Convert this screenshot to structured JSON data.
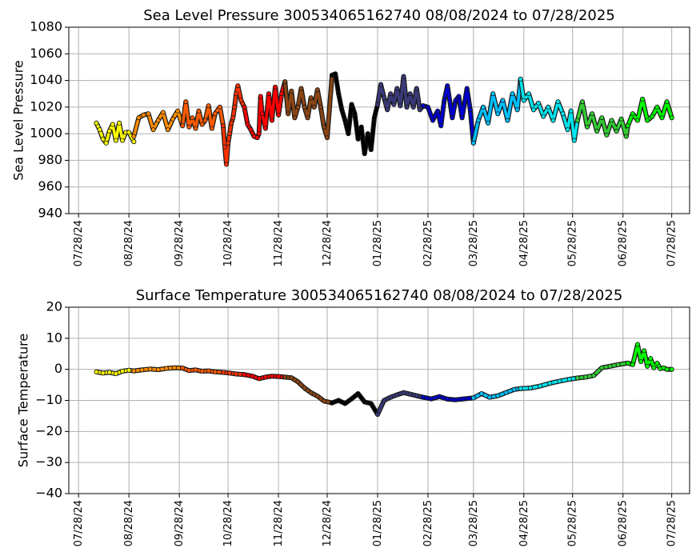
{
  "chart_data": [
    {
      "type": "scatter",
      "title": "Sea Level Pressure 300534065162740  08/08/2024 to 07/28/2025",
      "xlabel": "",
      "ylabel": "Sea Level Pressure",
      "ylim": [
        940,
        1080
      ],
      "yticks": [
        940,
        960,
        980,
        1000,
        1020,
        1040,
        1060,
        1080
      ],
      "xlim": [
        "2024-07-22",
        "2025-08-08"
      ],
      "xtick_labels": [
        "07/28/24",
        "08/28/24",
        "09/28/24",
        "10/28/24",
        "11/28/24",
        "12/28/24",
        "01/28/25",
        "02/28/25",
        "03/28/25",
        "04/28/25",
        "05/28/25",
        "06/28/25",
        "07/28/25"
      ],
      "xtick_dates": [
        "2024-07-28",
        "2024-08-28",
        "2024-09-28",
        "2024-10-28",
        "2024-11-28",
        "2024-12-28",
        "2025-01-28",
        "2025-02-28",
        "2025-03-28",
        "2025-04-28",
        "2025-05-28",
        "2025-06-28",
        "2025-07-28"
      ],
      "grid": true,
      "series": [
        {
          "color": "#ffff00",
          "x": [
            "2024-08-08",
            "2024-08-10",
            "2024-08-12",
            "2024-08-14",
            "2024-08-16",
            "2024-08-18",
            "2024-08-20",
            "2024-08-22",
            "2024-08-24",
            "2024-08-26",
            "2024-08-28",
            "2024-08-31"
          ],
          "y": [
            1008,
            1003,
            996,
            993,
            1002,
            1007,
            995,
            1008,
            995,
            1001,
            1001,
            994
          ]
        },
        {
          "color": "#ff8c00",
          "x": [
            "2024-08-31",
            "2024-09-03",
            "2024-09-06",
            "2024-09-09",
            "2024-09-12",
            "2024-09-15",
            "2024-09-18",
            "2024-09-21",
            "2024-09-24",
            "2024-09-27",
            "2024-09-30"
          ],
          "y": [
            998,
            1012,
            1014,
            1015,
            1003,
            1010,
            1016,
            1003,
            1011,
            1017,
            1006
          ]
        },
        {
          "color": "#ff5a00",
          "x": [
            "2024-09-30",
            "2024-10-02",
            "2024-10-04",
            "2024-10-06",
            "2024-10-08",
            "2024-10-10",
            "2024-10-12",
            "2024-10-14",
            "2024-10-16",
            "2024-10-18",
            "2024-10-20",
            "2024-10-23",
            "2024-10-25"
          ],
          "y": [
            1006,
            1024,
            1005,
            1012,
            1004,
            1017,
            1007,
            1010,
            1021,
            1004,
            1015,
            1020,
            1006
          ]
        },
        {
          "color": "#ff3300",
          "x": [
            "2024-10-25",
            "2024-10-26",
            "2024-10-27",
            "2024-10-28",
            "2024-10-29",
            "2024-10-30",
            "2024-10-31",
            "2024-11-01",
            "2024-11-02",
            "2024-11-03",
            "2024-11-05",
            "2024-11-07"
          ],
          "y": [
            1006,
            990,
            977,
            993,
            1000,
            1008,
            1012,
            1020,
            1030,
            1036,
            1025,
            1020
          ]
        },
        {
          "color": "#ff0000",
          "x": [
            "2024-11-07",
            "2024-11-09",
            "2024-11-11",
            "2024-11-13",
            "2024-11-15",
            "2024-11-16",
            "2024-11-17",
            "2024-11-18",
            "2024-11-20",
            "2024-11-22",
            "2024-11-24",
            "2024-11-26",
            "2024-11-28",
            "2024-11-30",
            "2024-12-02"
          ],
          "y": [
            1020,
            1007,
            1003,
            998,
            997,
            1000,
            1028,
            1015,
            1004,
            1030,
            1010,
            1035,
            1014,
            1030,
            1039
          ]
        },
        {
          "color": "#8b4513",
          "x": [
            "2024-12-02",
            "2024-12-04",
            "2024-12-06",
            "2024-12-08",
            "2024-12-10",
            "2024-12-12",
            "2024-12-14",
            "2024-12-16",
            "2024-12-18",
            "2024-12-20",
            "2024-12-22",
            "2024-12-24",
            "2024-12-26",
            "2024-12-28",
            "2024-12-31"
          ],
          "y": [
            1039,
            1015,
            1032,
            1012,
            1020,
            1034,
            1020,
            1012,
            1027,
            1020,
            1033,
            1020,
            1005,
            997,
            1044
          ]
        },
        {
          "color": "#000000",
          "x": [
            "2024-12-31",
            "2025-01-02",
            "2025-01-04",
            "2025-01-06",
            "2025-01-08",
            "2025-01-10",
            "2025-01-12",
            "2025-01-14",
            "2025-01-16",
            "2025-01-18",
            "2025-01-20",
            "2025-01-22",
            "2025-01-24",
            "2025-01-26",
            "2025-01-28"
          ],
          "y": [
            1044,
            1045,
            1030,
            1018,
            1010,
            1000,
            1022,
            1015,
            996,
            1005,
            985,
            1000,
            988,
            1012,
            1022
          ]
        },
        {
          "color": "#3a3a7a",
          "x": [
            "2025-01-28",
            "2025-01-30",
            "2025-02-01",
            "2025-02-03",
            "2025-02-05",
            "2025-02-07",
            "2025-02-09",
            "2025-02-11",
            "2025-02-13",
            "2025-02-15",
            "2025-02-17",
            "2025-02-19",
            "2025-02-21",
            "2025-02-23",
            "2025-02-25"
          ],
          "y": [
            1022,
            1037,
            1027,
            1018,
            1030,
            1022,
            1034,
            1021,
            1043,
            1020,
            1030,
            1020,
            1034,
            1018,
            1021
          ]
        },
        {
          "color": "#0000cd",
          "x": [
            "2025-02-25",
            "2025-02-28",
            "2025-03-03",
            "2025-03-06",
            "2025-03-08",
            "2025-03-10",
            "2025-03-12",
            "2025-03-15",
            "2025-03-17",
            "2025-03-19",
            "2025-03-21",
            "2025-03-24",
            "2025-03-26",
            "2025-03-28"
          ],
          "y": [
            1021,
            1020,
            1010,
            1017,
            1006,
            1025,
            1036,
            1012,
            1025,
            1028,
            1012,
            1034,
            1018,
            993
          ]
        },
        {
          "color": "#00bfff",
          "x": [
            "2025-03-28",
            "2025-03-31",
            "2025-04-03",
            "2025-04-06",
            "2025-04-09",
            "2025-04-12",
            "2025-04-15",
            "2025-04-18",
            "2025-04-21",
            "2025-04-24",
            "2025-04-26"
          ],
          "y": [
            993,
            1010,
            1020,
            1008,
            1030,
            1015,
            1025,
            1010,
            1030,
            1018,
            1041
          ]
        },
        {
          "color": "#00e5ee",
          "x": [
            "2025-04-26",
            "2025-04-28",
            "2025-05-01",
            "2025-05-04",
            "2025-05-07",
            "2025-05-10",
            "2025-05-13",
            "2025-05-16",
            "2025-05-19",
            "2025-05-22",
            "2025-05-25",
            "2025-05-27",
            "2025-05-29",
            "2025-05-31"
          ],
          "y": [
            1041,
            1025,
            1030,
            1018,
            1023,
            1013,
            1020,
            1010,
            1024,
            1015,
            1003,
            1017,
            995,
            1010
          ]
        },
        {
          "color": "#32cd32",
          "x": [
            "2025-05-31",
            "2025-06-03",
            "2025-06-06",
            "2025-06-09",
            "2025-06-12",
            "2025-06-15",
            "2025-06-18",
            "2025-06-21",
            "2025-06-24",
            "2025-06-27",
            "2025-06-30",
            "2025-07-01"
          ],
          "y": [
            1010,
            1024,
            1005,
            1015,
            1002,
            1012,
            999,
            1010,
            1002,
            1011,
            998,
            1006
          ]
        },
        {
          "color": "#00ff00",
          "x": [
            "2025-07-01",
            "2025-07-04",
            "2025-07-07",
            "2025-07-10",
            "2025-07-13",
            "2025-07-16",
            "2025-07-19",
            "2025-07-22",
            "2025-07-25",
            "2025-07-28"
          ],
          "y": [
            1006,
            1015,
            1010,
            1026,
            1010,
            1013,
            1020,
            1012,
            1024,
            1012
          ]
        }
      ]
    },
    {
      "type": "scatter",
      "title": "Surface Temperature 300534065162740  08/08/2024 to 07/28/2025",
      "xlabel": "",
      "ylabel": "Surface Temperature",
      "ylim": [
        -40,
        20
      ],
      "yticks": [
        -40,
        -30,
        -20,
        -10,
        0,
        10,
        20
      ],
      "xlim": [
        "2024-07-22",
        "2025-08-08"
      ],
      "xtick_labels": [
        "07/28/24",
        "08/28/24",
        "09/28/24",
        "10/28/24",
        "11/28/24",
        "12/28/24",
        "01/28/25",
        "02/28/25",
        "03/28/25",
        "04/28/25",
        "05/28/25",
        "06/28/25",
        "07/28/25"
      ],
      "xtick_dates": [
        "2024-07-28",
        "2024-08-28",
        "2024-09-28",
        "2024-10-28",
        "2024-11-28",
        "2024-12-28",
        "2025-01-28",
        "2025-02-28",
        "2025-03-28",
        "2025-04-28",
        "2025-05-28",
        "2025-06-28",
        "2025-07-28"
      ],
      "grid": true,
      "series": [
        {
          "color": "#ffff00",
          "x": [
            "2024-08-08",
            "2024-08-12",
            "2024-08-16",
            "2024-08-20",
            "2024-08-24",
            "2024-08-28",
            "2024-08-31"
          ],
          "y": [
            -0.8,
            -1.2,
            -1.0,
            -1.4,
            -0.6,
            -0.3,
            -0.5
          ]
        },
        {
          "color": "#ff8c00",
          "x": [
            "2024-08-31",
            "2024-09-05",
            "2024-09-10",
            "2024-09-15",
            "2024-09-20",
            "2024-09-25",
            "2024-09-30"
          ],
          "y": [
            -0.5,
            -0.2,
            0.1,
            -0.1,
            0.3,
            0.5,
            0.4
          ]
        },
        {
          "color": "#ff5a00",
          "x": [
            "2024-09-30",
            "2024-10-04",
            "2024-10-08",
            "2024-10-12",
            "2024-10-16",
            "2024-10-20",
            "2024-10-25"
          ],
          "y": [
            0.4,
            -0.4,
            -0.2,
            -0.6,
            -0.5,
            -0.8,
            -1.0
          ]
        },
        {
          "color": "#ff3300",
          "x": [
            "2024-10-25",
            "2024-10-29",
            "2024-11-02",
            "2024-11-07"
          ],
          "y": [
            -1.0,
            -1.2,
            -1.5,
            -1.7
          ]
        },
        {
          "color": "#ff0000",
          "x": [
            "2024-11-07",
            "2024-11-12",
            "2024-11-16",
            "2024-11-20",
            "2024-11-24",
            "2024-11-28",
            "2024-12-02"
          ],
          "y": [
            -1.7,
            -2.2,
            -3.0,
            -2.5,
            -2.2,
            -2.3,
            -2.5
          ]
        },
        {
          "color": "#8b4513",
          "x": [
            "2024-12-02",
            "2024-12-06",
            "2024-12-10",
            "2024-12-14",
            "2024-12-18",
            "2024-12-22",
            "2024-12-26",
            "2024-12-31"
          ],
          "y": [
            -2.5,
            -2.7,
            -4.0,
            -6.0,
            -7.5,
            -8.6,
            -10.2,
            -10.8
          ]
        },
        {
          "color": "#000000",
          "x": [
            "2024-12-31",
            "2025-01-04",
            "2025-01-08",
            "2025-01-12",
            "2025-01-16",
            "2025-01-20",
            "2025-01-24",
            "2025-01-28"
          ],
          "y": [
            -10.8,
            -10.0,
            -11.0,
            -9.5,
            -7.8,
            -10.5,
            -11.0,
            -14.5
          ]
        },
        {
          "color": "#3a3a7a",
          "x": [
            "2025-01-28",
            "2025-02-01",
            "2025-02-05",
            "2025-02-09",
            "2025-02-13",
            "2025-02-17",
            "2025-02-21",
            "2025-02-25"
          ],
          "y": [
            -14.5,
            -10.0,
            -9.0,
            -8.2,
            -7.5,
            -8.0,
            -8.5,
            -9.0
          ]
        },
        {
          "color": "#0000cd",
          "x": [
            "2025-02-25",
            "2025-03-02",
            "2025-03-07",
            "2025-03-12",
            "2025-03-17",
            "2025-03-22",
            "2025-03-28"
          ],
          "y": [
            -9.0,
            -9.5,
            -8.8,
            -9.6,
            -9.8,
            -9.5,
            -9.2
          ]
        },
        {
          "color": "#00bfff",
          "x": [
            "2025-03-28",
            "2025-04-02",
            "2025-04-07",
            "2025-04-12",
            "2025-04-17",
            "2025-04-22",
            "2025-04-26"
          ],
          "y": [
            -9.2,
            -7.8,
            -9.0,
            -8.5,
            -7.5,
            -6.5,
            -6.2
          ]
        },
        {
          "color": "#00e5ee",
          "x": [
            "2025-04-26",
            "2025-05-02",
            "2025-05-08",
            "2025-05-14",
            "2025-05-20",
            "2025-05-26",
            "2025-05-31"
          ],
          "y": [
            -6.2,
            -6.0,
            -5.4,
            -4.5,
            -3.8,
            -3.2,
            -2.8
          ]
        },
        {
          "color": "#32cd32",
          "x": [
            "2025-05-31",
            "2025-06-05",
            "2025-06-10",
            "2025-06-15",
            "2025-06-20",
            "2025-06-25",
            "2025-07-01"
          ],
          "y": [
            -2.8,
            -2.5,
            -2.0,
            0.5,
            1.0,
            1.5,
            2.0
          ]
        },
        {
          "color": "#00ff00",
          "x": [
            "2025-07-01",
            "2025-07-04",
            "2025-07-07",
            "2025-07-09",
            "2025-07-11",
            "2025-07-13",
            "2025-07-15",
            "2025-07-17",
            "2025-07-19",
            "2025-07-21",
            "2025-07-23",
            "2025-07-25",
            "2025-07-28"
          ],
          "y": [
            2.0,
            1.5,
            8.0,
            2.5,
            6.0,
            1.0,
            3.5,
            0.5,
            2.0,
            0.2,
            0.5,
            0.0,
            0.0
          ]
        }
      ]
    }
  ]
}
